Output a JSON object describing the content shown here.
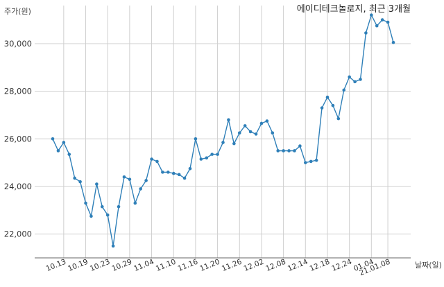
{
  "chart_data": {
    "type": "line",
    "title": "에이디테크놀로지, 최근 3개월",
    "ylabel": "주가(원)",
    "xlabel": "날짜(일)",
    "ylim": [
      21000,
      31600
    ],
    "yticks": [
      22000,
      24000,
      26000,
      28000,
      30000
    ],
    "ytick_labels": [
      "22,000",
      "24,000",
      "26,000",
      "28,000",
      "30,000"
    ],
    "xtick_labels": [
      "10.13",
      "10.19",
      "10.23",
      "10.29",
      "11.04",
      "11.10",
      "11.16",
      "11.20",
      "11.26",
      "12.02",
      "12.08",
      "12.14",
      "12.18",
      "12.24",
      "01.04",
      "21.01.08"
    ],
    "xtick_index": [
      2,
      6,
      10,
      14,
      18,
      22,
      26,
      30,
      34,
      38,
      42,
      46,
      50,
      54,
      58,
      61
    ],
    "grid": true,
    "line_color": "#2e7fb8",
    "series": [
      {
        "values": [
          26000,
          25500,
          25850,
          25350,
          24350,
          24200,
          23300,
          22750,
          24100,
          23150,
          22800,
          21500,
          23150,
          24400,
          24300,
          23300,
          23900,
          24250,
          25150,
          25050,
          24600,
          24600,
          24550,
          24500,
          24350,
          24750,
          26000,
          25150,
          25200,
          25350,
          25350,
          25850,
          26800,
          25800,
          26250,
          26550,
          26300,
          26200,
          26650,
          26750,
          26250,
          25500,
          25500,
          25500,
          25500,
          25700,
          25000,
          25050,
          25100,
          27300,
          27750,
          27400,
          26850,
          28050,
          28600,
          28400,
          28500,
          30450,
          31200,
          30750,
          31000,
          30900,
          30050
        ]
      }
    ]
  }
}
